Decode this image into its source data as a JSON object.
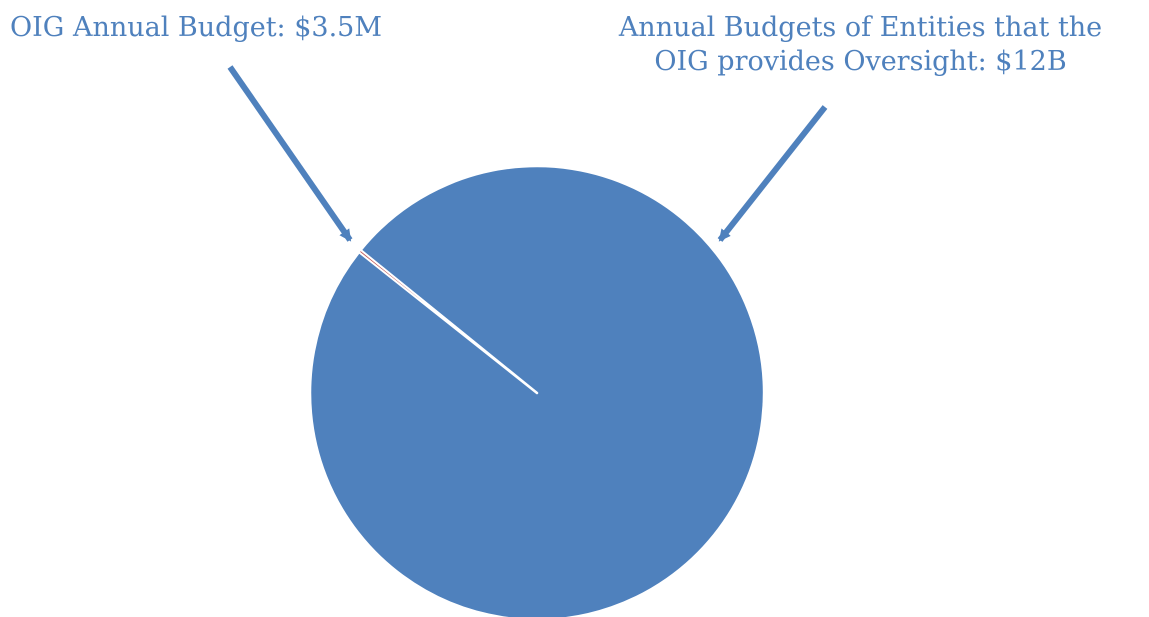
{
  "chart_data": {
    "type": "pie",
    "title": "",
    "slices": [
      {
        "label": "OIG Annual Budget: $3.5M",
        "value": 3.5,
        "unit": "M",
        "color": "#c0504d"
      },
      {
        "label": "Annual Budgets of Entities that the OIG provides Oversight: $12B",
        "value": 12000,
        "unit": "M",
        "color": "#4f81bd"
      }
    ],
    "annotations": [
      {
        "text": "OIG Annual Budget: $3.5M",
        "points_to": "OIG Annual Budget slice"
      },
      {
        "text_lines": [
          "Annual Budgets of Entities that the",
          "OIG provides Oversight: $12B"
        ],
        "points_to": "Entities slice"
      }
    ],
    "legend": "none",
    "colors": {
      "primary": "#4f81bd",
      "secondary": "#c0504d",
      "arrow": "#4f81bd",
      "separator": "#ffffff"
    }
  }
}
